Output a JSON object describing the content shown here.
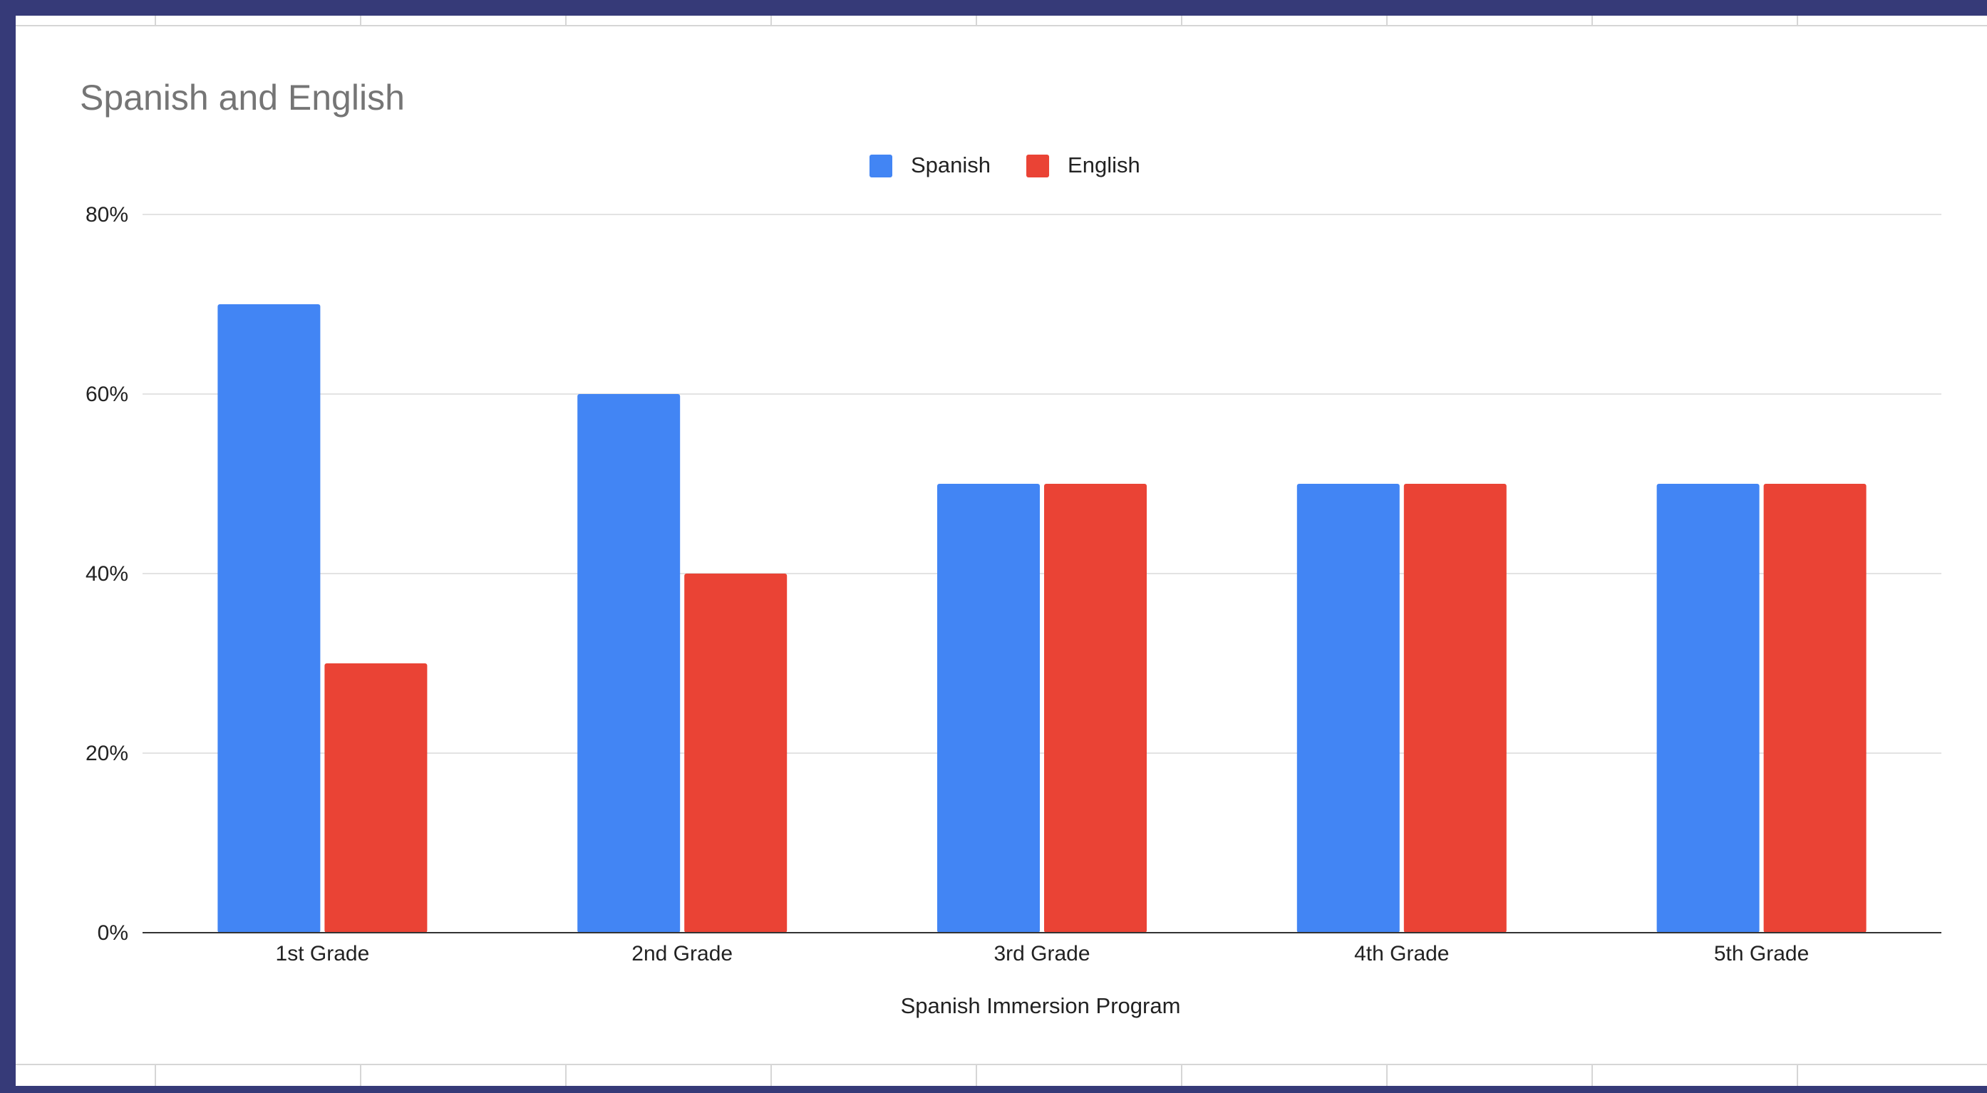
{
  "chart_data": {
    "type": "bar",
    "title": "Spanish and English",
    "xlabel": "Spanish Immersion Program",
    "ylabel": "",
    "categories": [
      "1st Grade",
      "2nd Grade",
      "3rd Grade",
      "4th Grade",
      "5th Grade"
    ],
    "series": [
      {
        "name": "Spanish",
        "color": "#4285f4",
        "values": [
          70,
          60,
          50,
          50,
          50
        ]
      },
      {
        "name": "English",
        "color": "#ea4335",
        "values": [
          30,
          40,
          50,
          50,
          50
        ]
      }
    ],
    "ylim": [
      0,
      80
    ],
    "yticks": [
      0,
      20,
      40,
      60,
      80
    ],
    "ytick_labels": [
      "0%",
      "20%",
      "40%",
      "60%",
      "80%"
    ],
    "grid": true,
    "legend_position": "top"
  }
}
